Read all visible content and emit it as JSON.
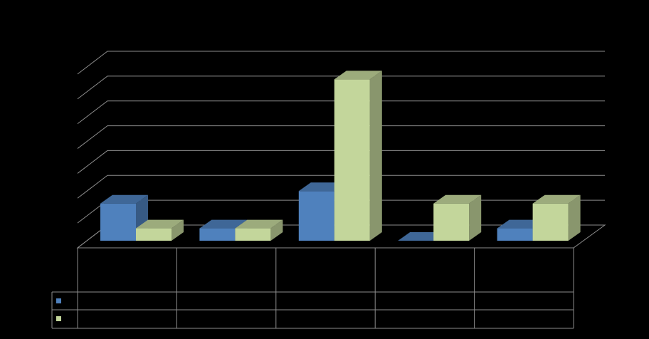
{
  "chart_data": {
    "type": "bar3d",
    "categories": [
      null,
      null,
      null,
      null,
      null
    ],
    "series": [
      {
        "color": "#4f81bd",
        "values": [
          1.5,
          0.5,
          2,
          0,
          0.5
        ]
      },
      {
        "color": "#c3d69b",
        "values": [
          0.5,
          0.5,
          6.5,
          1.5,
          1.5
        ]
      }
    ],
    "ylim": [
      0,
      7
    ],
    "yticks": [
      0,
      1,
      2,
      3,
      4,
      5,
      6,
      7
    ],
    "grid": true,
    "data_table": true
  }
}
